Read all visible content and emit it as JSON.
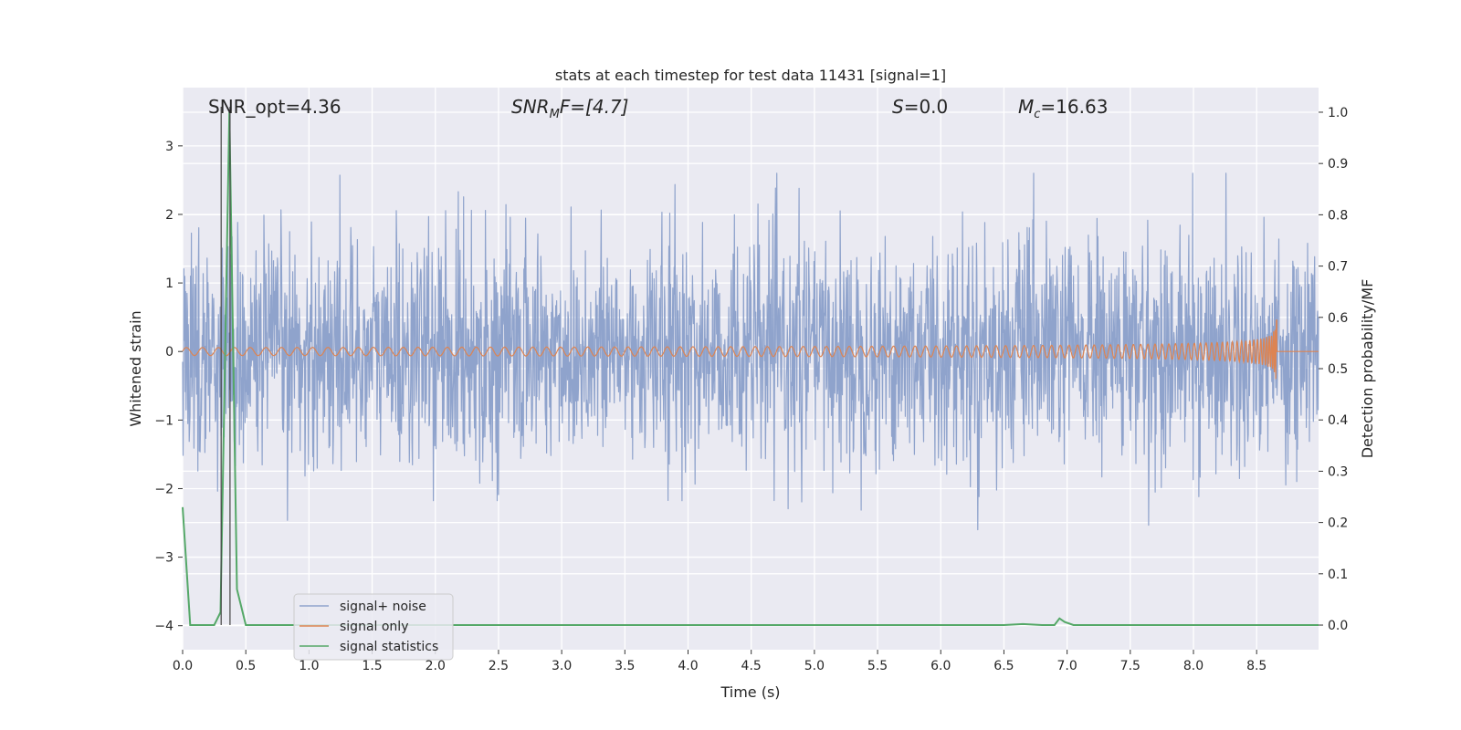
{
  "chart_data": {
    "type": "line",
    "title": "stats at each timestep for test data 11431 [signal=1]",
    "xlabel": "Time (s)",
    "ylabel": "Whitened strain",
    "y2label": "Detection probability/MF",
    "xlim": [
      0,
      8.99
    ],
    "ylim": [
      -4.35,
      3.85
    ],
    "y2lim": [
      -0.048,
      1.048
    ],
    "xticks": [
      0.0,
      0.5,
      1.0,
      1.5,
      2.0,
      2.5,
      3.0,
      3.5,
      4.0,
      4.5,
      5.0,
      5.5,
      6.0,
      6.5,
      7.0,
      7.5,
      8.0,
      8.5
    ],
    "xtick_labels": [
      "0.0",
      "0.5",
      "1.0",
      "1.5",
      "2.0",
      "2.5",
      "3.0",
      "3.5",
      "4.0",
      "4.5",
      "5.0",
      "5.5",
      "6.0",
      "6.5",
      "7.0",
      "7.5",
      "8.0",
      "8.5"
    ],
    "yticks": [
      -4,
      -3,
      -2,
      -1,
      0,
      1,
      2,
      3
    ],
    "ytick_labels": [
      "−4",
      "−3",
      "−2",
      "−1",
      "0",
      "1",
      "2",
      "3"
    ],
    "y2ticks": [
      0.0,
      0.1,
      0.2,
      0.3,
      0.4,
      0.5,
      0.6,
      0.7,
      0.8,
      0.9,
      1.0
    ],
    "y2tick_labels": [
      "0.0",
      "0.1",
      "0.2",
      "0.3",
      "0.4",
      "0.5",
      "0.6",
      "0.7",
      "0.8",
      "0.9",
      "1.0"
    ],
    "grid": true,
    "legend_position": "lower-left",
    "annotations": {
      "snr_opt": "SNR_opt=4.36",
      "snr_mf_main": "SNR",
      "snr_mf_sub": "M",
      "snr_mf_rest": "F=[4.7]",
      "s_main": "S",
      "s_rest": "=0.0",
      "mc_main": "M",
      "mc_sub": "c",
      "mc_rest": "=16.63"
    },
    "vertical_lines_x": [
      0.305,
      0.375
    ],
    "series": [
      {
        "name": "signal+ noise",
        "color": "#8fa3cc",
        "description_values": "white Gaussian noise, amplitude ~±1, peaks up to 3.5"
      },
      {
        "name": "signal only",
        "color": "#dd8452",
        "chirp_end_x": 8.66,
        "chirp_peak_amplitude": 0.5
      },
      {
        "name": "signal statistics",
        "color": "#55a868",
        "axis": "right",
        "x": [
          0.0,
          0.06,
          0.1,
          0.15,
          0.25,
          0.3,
          0.37,
          0.43,
          0.5,
          6.5,
          6.65,
          6.8,
          6.9,
          6.94,
          6.98,
          7.05,
          8.99
        ],
        "y": [
          0.23,
          0.0,
          0.0,
          0.0,
          0.0,
          0.025,
          1.0,
          0.07,
          0.0,
          0.0,
          0.002,
          0.0,
          0.0,
          0.013,
          0.006,
          0.0,
          0.0
        ]
      }
    ]
  }
}
